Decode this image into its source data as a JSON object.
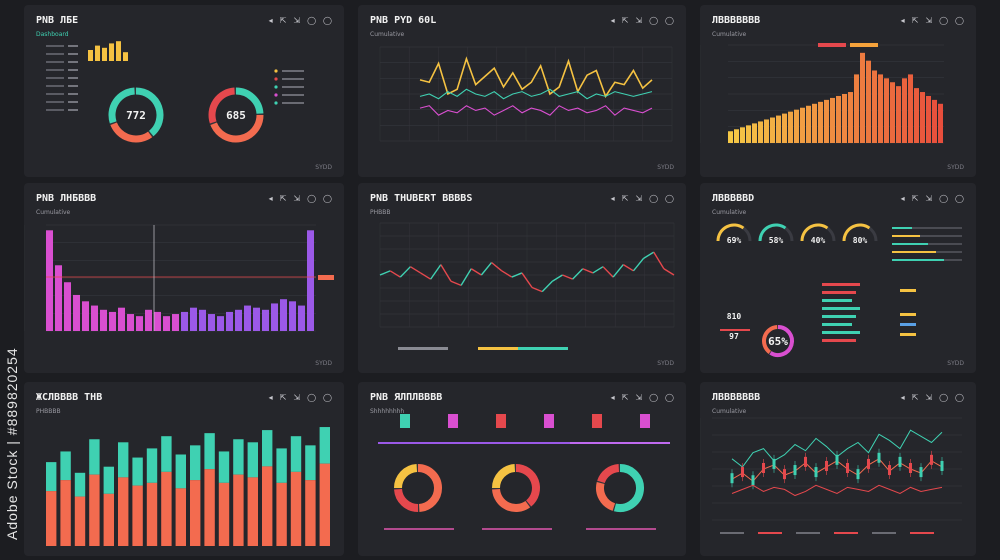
{
  "watermark": {
    "text": "Adobe Stock | #889820254"
  },
  "toolbar": {
    "icons": [
      "back-icon",
      "share-icon",
      "expand-icon",
      "settings-icon",
      "info-icon"
    ],
    "glyphs": [
      "◂",
      "⇱",
      "⇲",
      "◯",
      "◯"
    ]
  },
  "colors": {
    "bg": "#1c1d21",
    "panel": "#25262b",
    "teal": "#3fd1b2",
    "coral": "#f36b4f",
    "yellow": "#f5c242",
    "magenta": "#d94fd0",
    "purple": "#9b59e8",
    "red": "#e5484d"
  },
  "panels": {
    "p1": {
      "title": "PNB ЛБЕ",
      "subtitle": "Dashboard",
      "gauge1_value": "772",
      "gauge2_value": "685",
      "footer": "SYDD"
    },
    "p2": {
      "title": "PNB PYD 60L",
      "subtitle": "Cumulative",
      "footer": "SYDD"
    },
    "p3": {
      "title": "ЛВВВВВВВ",
      "subtitle": "Cumulative",
      "footer": "SYDD"
    },
    "p4": {
      "title": "PNB ЛНБВВВ",
      "subtitle": "Cumulative",
      "footer": "SYDD"
    },
    "p5": {
      "title": "PNB THUBERT BBBBS",
      "subtitle": "PHBBB",
      "footer": "SYDD"
    },
    "p6": {
      "title": "ЛВВВВВD",
      "subtitle": "Cumulative",
      "gauge_values": [
        "69%",
        "58%",
        "40%",
        "80%"
      ],
      "ring_value": "65%",
      "mini_values": [
        "810",
        "97"
      ],
      "footer": "SYDD"
    },
    "p7": {
      "title": "ЖСЛВВВВ ТНВ",
      "subtitle": "PHBBBB",
      "footer": "SYDD"
    },
    "p8": {
      "title": "PNB ЯЛПЛВВВВ",
      "subtitle": "Shhhhhhhh",
      "footer": "SYDD"
    },
    "p9": {
      "title": "ЛВВВВВВВ",
      "subtitle": "Cumulative",
      "footer": "SYDD"
    }
  },
  "chart_data": [
    {
      "type": "bar",
      "panel": "p1-mini",
      "values": [
        5,
        7,
        6,
        8,
        9,
        4
      ]
    },
    {
      "type": "line",
      "panel": "p2",
      "series": [
        {
          "values": [
            52,
            50,
            66,
            40,
            44,
            70,
            48,
            55,
            62,
            46,
            58,
            44,
            50,
            64,
            40,
            46,
            68,
            42,
            56,
            60,
            38,
            50,
            48,
            60,
            45,
            52
          ]
        },
        {
          "values": [
            28,
            30,
            22,
            26,
            24,
            30,
            26,
            28,
            22,
            26,
            30,
            24,
            28,
            26,
            22,
            30,
            26,
            28,
            24,
            26,
            30,
            22,
            28,
            26,
            24,
            28
          ]
        },
        {
          "values": [
            38,
            40,
            36,
            42,
            38,
            44,
            40,
            38,
            42,
            36,
            40,
            42,
            38,
            40,
            44,
            38,
            40,
            42,
            36,
            40,
            38,
            42,
            40,
            38,
            40,
            42
          ]
        }
      ]
    },
    {
      "type": "bar",
      "panel": "p3",
      "values": [
        12,
        14,
        16,
        18,
        20,
        22,
        24,
        26,
        28,
        30,
        32,
        34,
        36,
        38,
        40,
        42,
        44,
        46,
        48,
        50,
        52,
        70,
        92,
        84,
        74,
        70,
        66,
        62,
        58,
        66,
        70,
        56,
        52,
        48,
        44,
        40
      ]
    },
    {
      "type": "bar",
      "panel": "p4",
      "values": [
        95,
        62,
        46,
        34,
        28,
        24,
        20,
        18,
        22,
        16,
        14,
        20,
        18,
        14,
        16,
        18,
        22,
        20,
        16,
        14,
        18,
        20,
        24,
        22,
        20,
        26,
        30,
        28,
        24,
        95
      ]
    },
    {
      "type": "line",
      "panel": "p5",
      "values": [
        50,
        54,
        48,
        58,
        52,
        46,
        60,
        44,
        40,
        56,
        50,
        62,
        54,
        48,
        52,
        38,
        34,
        44,
        50,
        46,
        56,
        52,
        58,
        48,
        60,
        54,
        66,
        72,
        56,
        50
      ]
    },
    {
      "type": "bar",
      "panel": "p7",
      "series": [
        {
          "name": "teal",
          "values": [
            55,
            62,
            48,
            70,
            52,
            68,
            58,
            64,
            72,
            60,
            66,
            74,
            62,
            70,
            68,
            76,
            64,
            72,
            66,
            78
          ]
        },
        {
          "name": "coral",
          "values": [
            40,
            48,
            36,
            52,
            38,
            50,
            44,
            46,
            54,
            42,
            48,
            56,
            46,
            52,
            50,
            58,
            46,
            54,
            48,
            60
          ]
        }
      ]
    },
    {
      "type": "line",
      "panel": "p9",
      "series": [
        {
          "values": [
            60,
            52,
            66,
            70,
            58,
            64,
            74,
            68,
            80,
            72,
            62,
            70,
            76,
            66,
            84,
            78,
            70,
            88,
            82,
            76,
            86
          ]
        },
        {
          "values": [
            40,
            46,
            38,
            50,
            54,
            44,
            48,
            56,
            46,
            52,
            58,
            50,
            44,
            54,
            60,
            48,
            56,
            50,
            46,
            58,
            52
          ]
        },
        {
          "values": [
            26,
            30,
            34,
            28,
            32,
            30,
            24,
            28,
            34,
            30,
            26,
            32,
            30,
            28,
            34,
            30,
            26,
            32,
            28,
            30,
            32
          ]
        }
      ]
    }
  ]
}
